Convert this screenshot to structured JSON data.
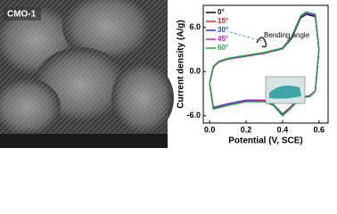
{
  "sem_image": {
    "label": "CMO-1"
  },
  "chart_data": {
    "type": "line",
    "y_label": "Current density (A/g)",
    "x_label": "Potential (V, SCE)",
    "annotation": "Bending angle",
    "x": [
      0,
      0.02,
      0.05,
      0.1,
      0.2,
      0.3,
      0.4,
      0.45,
      0.5,
      0.53,
      0.56,
      0.58,
      0.6,
      0.6,
      0.58,
      0.55,
      0.5,
      0.45,
      0.4,
      0.35,
      0.3,
      0.2,
      0.1,
      0.02,
      0
    ],
    "series": [
      {
        "name": "0°",
        "color": "#000000",
        "values": [
          -1.6,
          0.6,
          1.3,
          1.7,
          2.1,
          2.5,
          3.1,
          4.5,
          7.3,
          7.8,
          7.6,
          7.5,
          3.0,
          3.0,
          -2.6,
          -3.3,
          -3.5,
          -4.7,
          -5.8,
          -4.5,
          -3.9,
          -3.9,
          -4.4,
          -4.9,
          -1.6
        ]
      },
      {
        "name": "15°",
        "color": "#e0202a",
        "values": [
          -1.6,
          0.6,
          1.3,
          1.7,
          2.1,
          2.5,
          3.1,
          4.6,
          7.4,
          7.9,
          7.7,
          7.6,
          3.0,
          3.0,
          -2.6,
          -3.3,
          -3.5,
          -4.7,
          -5.9,
          -4.5,
          -3.9,
          -3.9,
          -4.4,
          -4.9,
          -1.6
        ]
      },
      {
        "name": "30°",
        "color": "#2040d0",
        "values": [
          -1.6,
          0.6,
          1.3,
          1.7,
          2.1,
          2.5,
          3.1,
          4.6,
          7.4,
          7.9,
          7.7,
          7.6,
          3.0,
          3.0,
          -2.6,
          -3.3,
          -3.5,
          -4.8,
          -5.9,
          -4.5,
          -4.0,
          -3.9,
          -4.4,
          -4.9,
          -1.6
        ]
      },
      {
        "name": "45°",
        "color": "#c020c0",
        "values": [
          -1.6,
          0.6,
          1.3,
          1.7,
          2.1,
          2.5,
          3.2,
          4.7,
          7.5,
          8.0,
          7.8,
          7.7,
          3.0,
          3.0,
          -2.6,
          -3.3,
          -3.6,
          -4.8,
          -6.0,
          -4.6,
          -4.0,
          -4.0,
          -4.5,
          -5.0,
          -1.6
        ]
      },
      {
        "name": "60°",
        "color": "#1faa3a",
        "values": [
          -1.6,
          0.7,
          1.4,
          1.8,
          2.2,
          2.6,
          3.2,
          4.8,
          7.6,
          8.1,
          7.9,
          7.8,
          3.0,
          3.0,
          -2.7,
          -3.4,
          -3.6,
          -4.9,
          -6.0,
          -4.6,
          -4.1,
          -4.1,
          -4.6,
          -5.1,
          -1.6
        ]
      }
    ],
    "xlim": [
      -0.035,
      0.65
    ],
    "xticks": [
      {
        "value": 0,
        "label": "0.0"
      },
      0.2,
      0.4,
      0.6
    ],
    "ylim": [
      -7,
      9
    ],
    "yticks": [
      {
        "value": -6,
        "label": "-6.0"
      },
      {
        "value": 0,
        "label": "0.0"
      },
      {
        "value": 6,
        "label": "6.0"
      }
    ],
    "legend": "upper left"
  }
}
